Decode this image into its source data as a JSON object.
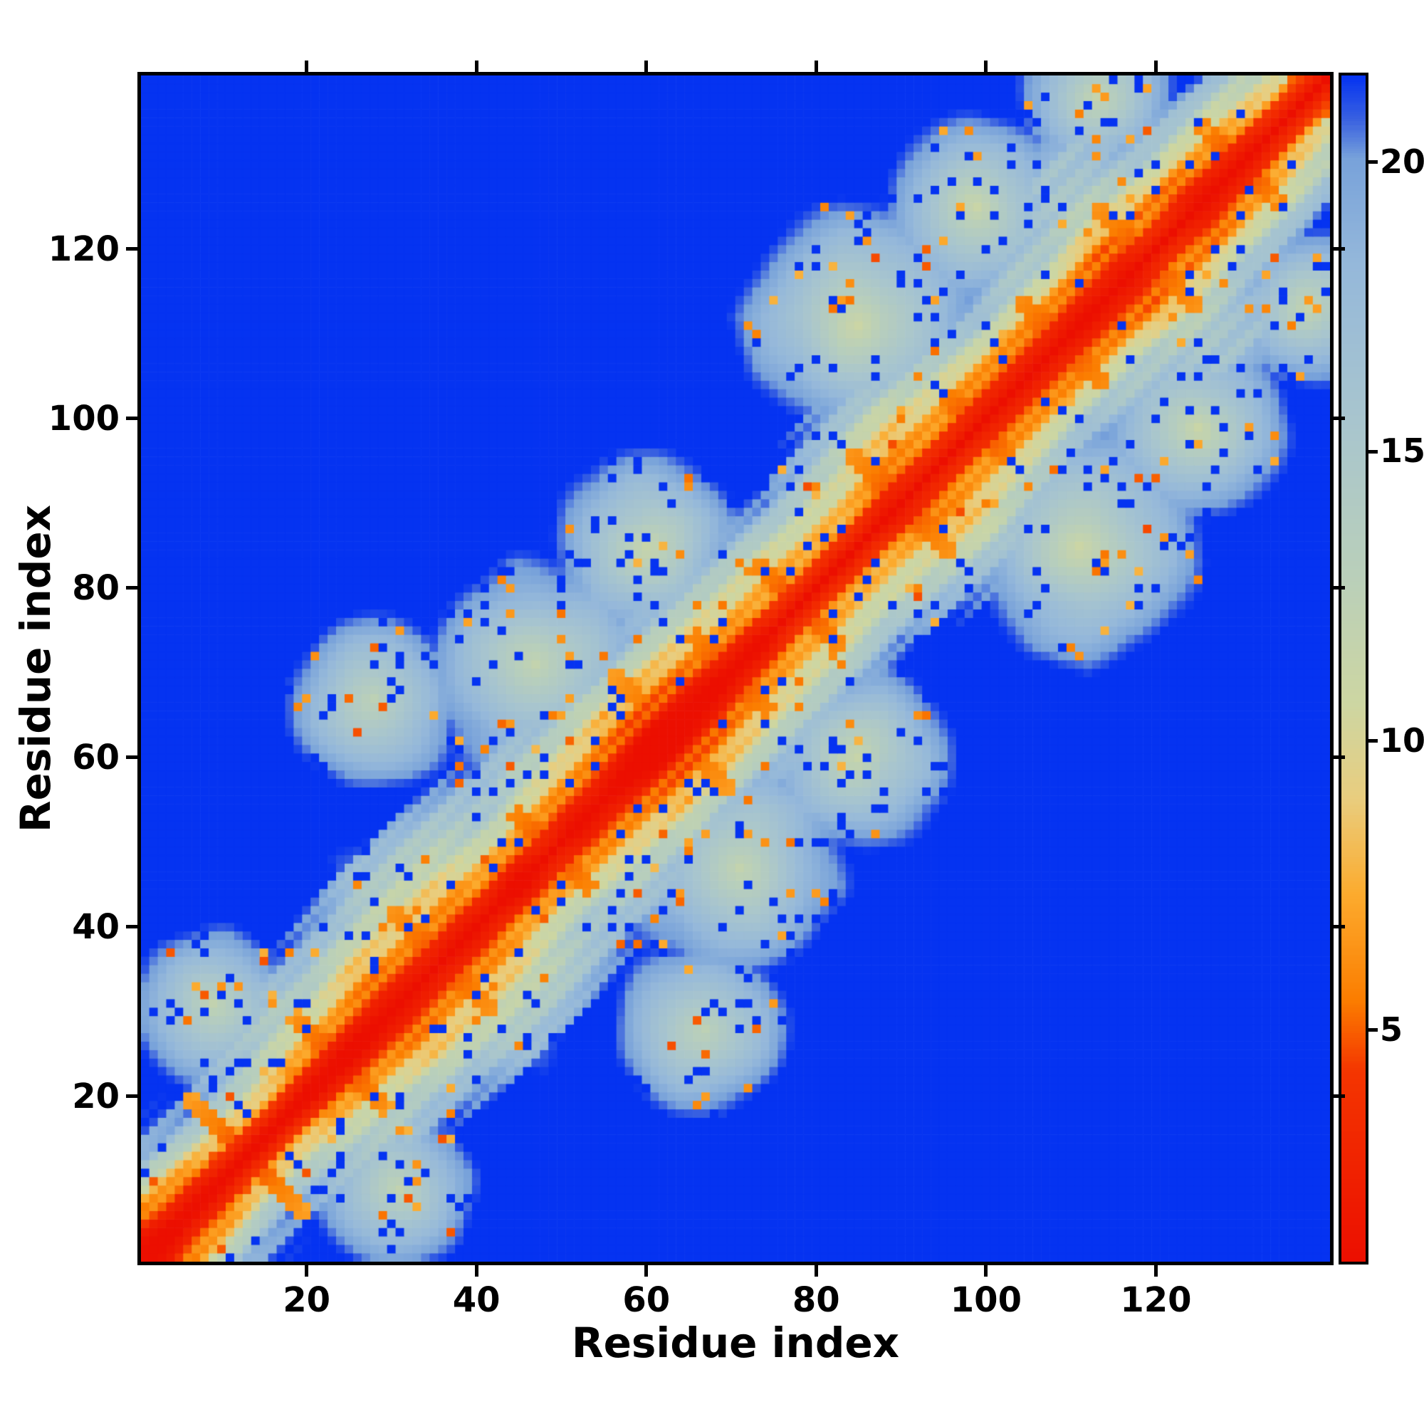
{
  "figure": {
    "background_color": "#ffffff",
    "frame_color": "#000000"
  },
  "chart_data": {
    "type": "heatmap",
    "title": "",
    "xlabel": "Residue index",
    "ylabel": "Residue index",
    "x_ticks": [
      20,
      40,
      60,
      80,
      100,
      120
    ],
    "y_ticks": [
      20,
      40,
      60,
      80,
      100,
      120
    ],
    "n_residues": 140,
    "axis_range": [
      1,
      140
    ],
    "value_range": [
      1,
      21.5
    ],
    "colorbar_ticks": [
      5,
      10,
      15,
      20
    ],
    "colorbar_position": "right",
    "background_value_color": "#0533f1",
    "colormap_stops": [
      [
        0.0,
        "#ec0f00"
      ],
      [
        0.16,
        "#f43500"
      ],
      [
        0.22,
        "#fb7d00"
      ],
      [
        0.31,
        "#fcab2e"
      ],
      [
        0.39,
        "#e9cd7e"
      ],
      [
        0.47,
        "#cdd6a2"
      ],
      [
        0.58,
        "#b9cfba"
      ],
      [
        0.71,
        "#a8c5ce"
      ],
      [
        0.84,
        "#95b8da"
      ],
      [
        0.93,
        "#78a2da"
      ],
      [
        0.962,
        "#3b63e0"
      ],
      [
        1.0,
        "#0533f1"
      ]
    ],
    "description": "Symmetric residue-residue distance map: red diagonal (near-zero distance), orange close contacts, pale green/blue mid-range halo around the diagonal with fractal lobes and speckles, saturated blue background for distances above the colorbar maximum (~21).",
    "generation": {
      "seed": 1337,
      "band_exponent": 0.9,
      "band_width_profile": [
        20,
        15,
        22,
        27,
        20,
        26,
        22,
        17,
        24,
        18,
        26,
        22,
        16
      ],
      "edge_noise_amp": 5,
      "stripe_amp": 1.15,
      "stripe_freq": 1.7,
      "hairpins": [
        {
          "c": 12,
          "len": 14
        },
        {
          "c": 23,
          "len": 10
        },
        {
          "c": 35,
          "len": 12
        },
        {
          "c": 48,
          "len": 9
        },
        {
          "c": 62,
          "len": 14
        },
        {
          "c": 69,
          "len": 9
        },
        {
          "c": 77,
          "len": 10
        },
        {
          "c": 89,
          "len": 12
        },
        {
          "c": 98,
          "len": 8
        },
        {
          "c": 108,
          "len": 10
        },
        {
          "c": 118,
          "len": 12
        },
        {
          "c": 129,
          "len": 10
        }
      ],
      "clusters": [
        [
          8,
          30,
          5,
          12
        ],
        [
          27,
          66,
          6,
          13
        ],
        [
          46,
          70,
          7,
          12
        ],
        [
          59,
          84,
          6,
          12
        ],
        [
          84,
          110,
          7,
          11
        ],
        [
          98,
          124,
          6,
          12
        ],
        [
          112,
          137,
          5,
          12
        ]
      ],
      "speckle_orange_p": 0.03,
      "speckle_blue_p": 0.055
    }
  }
}
